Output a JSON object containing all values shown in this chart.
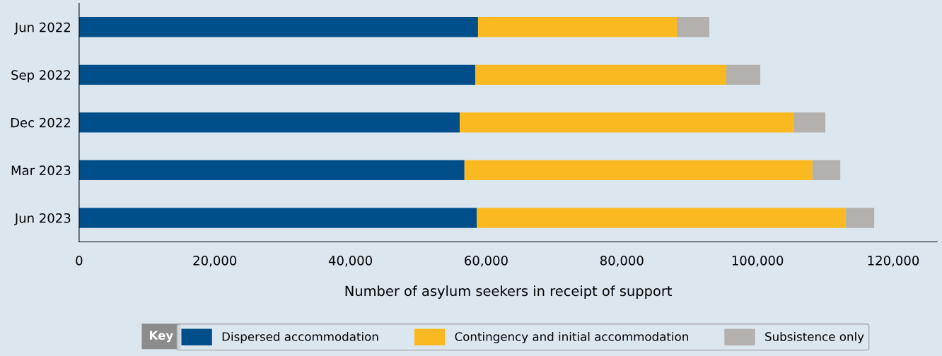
{
  "chart_data": {
    "type": "bar",
    "orientation": "horizontal",
    "stacked": true,
    "categories": [
      "Jun 2022",
      "Sep 2022",
      "Dec 2022",
      "Mar 2023",
      "Jun 2023"
    ],
    "series": [
      {
        "name": "Dispersed accommodation",
        "color": "#004f8b",
        "values": [
          58800,
          58400,
          56100,
          56800,
          58600
        ]
      },
      {
        "name": "Contingency and initial accommodation",
        "color": "#fbb921",
        "values": [
          29300,
          37000,
          49300,
          51300,
          54400
        ]
      },
      {
        "name": "Subsistence only",
        "color": "#b3b0ad",
        "values": [
          4800,
          5000,
          4600,
          4100,
          4200
        ]
      }
    ],
    "xlabel": "Number of asylum seekers in receipt of support",
    "xlim": [
      0,
      126500
    ],
    "xticks": [
      {
        "value": 0,
        "label": "0"
      },
      {
        "value": 20000,
        "label": "20,000"
      },
      {
        "value": 40000,
        "label": "40,000"
      },
      {
        "value": 60000,
        "label": "60,000"
      },
      {
        "value": 80000,
        "label": "80,000"
      },
      {
        "value": 100000,
        "label": "100,000"
      },
      {
        "value": 120000,
        "label": "120,000"
      }
    ],
    "grid": false,
    "legend": "bottom",
    "legend_title": "Key"
  }
}
